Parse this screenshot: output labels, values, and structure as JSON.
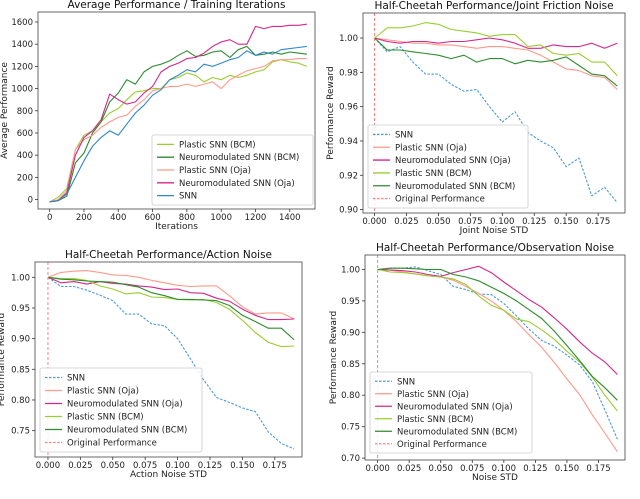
{
  "chart_data": [
    {
      "type": "line",
      "title": "Average Performance / Training Iterations",
      "xlabel": "Iterations",
      "ylabel": "Average Performance",
      "xlim": [
        -68,
        1547
      ],
      "ylim": [
        -85,
        1690
      ],
      "xticks": [
        0,
        200,
        400,
        600,
        800,
        1000,
        1200,
        1400
      ],
      "xtick_labels": [
        "0",
        "200",
        "400",
        "600",
        "800",
        "1000",
        "1200",
        "1400"
      ],
      "yticks": [
        0,
        200,
        400,
        600,
        800,
        1000,
        1200,
        1400,
        1600
      ],
      "ytick_labels": [
        "0",
        "200",
        "400",
        "600",
        "800",
        "1000",
        "1200",
        "1400",
        "1600"
      ],
      "grid": false,
      "legend": "bottom-right",
      "x": [
        0,
        50,
        100,
        150,
        200,
        250,
        300,
        350,
        400,
        450,
        500,
        550,
        600,
        650,
        700,
        750,
        800,
        850,
        900,
        950,
        1000,
        1050,
        1100,
        1150,
        1200,
        1250,
        1300,
        1350,
        1400,
        1450,
        1500
      ],
      "series": [
        {
          "name": "Plastic SNN (BCM)",
          "color": "#9acd32",
          "dash": false,
          "values": [
            -20,
            20,
            100,
            450,
            580,
            620,
            700,
            780,
            820,
            900,
            970,
            980,
            1000,
            1000,
            1080,
            1100,
            1140,
            1120,
            1060,
            1100,
            1080,
            1120,
            1100,
            1120,
            1150,
            1170,
            1240,
            1260,
            1240,
            1230,
            1200
          ]
        },
        {
          "name": "Neuromodulated SNN (BCM)",
          "color": "#2e8b2e",
          "dash": false,
          "values": [
            -20,
            -10,
            30,
            330,
            420,
            600,
            700,
            880,
            960,
            1080,
            1040,
            1150,
            1200,
            1220,
            1250,
            1300,
            1340,
            1290,
            1300,
            1330,
            1340,
            1280,
            1350,
            1380,
            1300,
            1310,
            1330,
            1310,
            1330,
            1320,
            1310
          ]
        },
        {
          "name": "Plastic SNN (Oja)",
          "color": "#ff9a8a",
          "dash": false,
          "values": [
            -20,
            0,
            80,
            450,
            540,
            580,
            650,
            700,
            740,
            760,
            840,
            900,
            980,
            1000,
            1020,
            1020,
            1040,
            1020,
            1040,
            1060,
            1000,
            1080,
            1120,
            1160,
            1180,
            1200,
            1250,
            1260,
            1260,
            1270,
            1270
          ]
        },
        {
          "name": "Neuromodulated SNN (Oja)",
          "color": "#d6278a",
          "dash": false,
          "values": [
            -20,
            -10,
            60,
            400,
            560,
            620,
            720,
            950,
            900,
            860,
            880,
            960,
            1020,
            1150,
            1200,
            1230,
            1270,
            1280,
            1320,
            1380,
            1420,
            1440,
            1400,
            1400,
            1560,
            1540,
            1560,
            1560,
            1570,
            1570,
            1580
          ]
        },
        {
          "name": "SNN",
          "color": "#2f86c8",
          "dash": false,
          "values": [
            -20,
            -10,
            50,
            200,
            350,
            480,
            560,
            620,
            580,
            680,
            780,
            850,
            940,
            990,
            1080,
            1120,
            1170,
            1150,
            1220,
            1200,
            1230,
            1260,
            1280,
            1340,
            1300,
            1330,
            1310,
            1350,
            1360,
            1370,
            1380
          ]
        }
      ]
    },
    {
      "type": "line",
      "title": "Half-Cheetah Performance/Joint Friction Noise",
      "xlabel": "Joint Noise STD",
      "ylabel": "Performance Reward",
      "xlim": [
        -0.009,
        0.196
      ],
      "ylim": [
        0.898,
        1.0146
      ],
      "xticks": [
        0,
        0.025,
        0.05,
        0.075,
        0.1,
        0.125,
        0.15,
        0.175
      ],
      "xtick_labels": [
        "0.000",
        "0.025",
        "0.050",
        "0.075",
        "0.100",
        "0.125",
        "0.150",
        "0.175"
      ],
      "yticks": [
        0.9,
        0.92,
        0.94,
        0.96,
        0.98,
        1.0
      ],
      "ytick_labels": [
        "0.90",
        "0.92",
        "0.94",
        "0.96",
        "0.98",
        "1.00"
      ],
      "grid": false,
      "legend": "lower-left",
      "vline": {
        "x": 0,
        "name": "Original Performance",
        "color": "#ff8080"
      },
      "x": [
        0,
        0.01,
        0.02,
        0.03,
        0.04,
        0.05,
        0.06,
        0.07,
        0.08,
        0.09,
        0.1,
        0.11,
        0.12,
        0.13,
        0.14,
        0.15,
        0.16,
        0.17,
        0.18,
        0.19
      ],
      "series": [
        {
          "name": "SNN",
          "color": "#4a9ad8",
          "dash": true,
          "values": [
            1.0,
            0.992,
            0.995,
            0.986,
            0.979,
            0.979,
            0.973,
            0.969,
            0.97,
            0.96,
            0.951,
            0.957,
            0.945,
            0.94,
            0.936,
            0.925,
            0.93,
            0.908,
            0.913,
            0.904
          ]
        },
        {
          "name": "Plastic SNN (Oja)",
          "color": "#ff9a8a",
          "dash": false,
          "values": [
            1.0,
            0.999,
            0.998,
            0.997,
            0.997,
            0.996,
            0.996,
            0.995,
            0.994,
            0.995,
            0.995,
            0.994,
            0.993,
            0.99,
            0.986,
            0.982,
            0.981,
            0.978,
            0.977,
            0.97
          ]
        },
        {
          "name": "Neuromodulated SNN (Oja)",
          "color": "#d6278a",
          "dash": false,
          "values": [
            1.0,
            0.998,
            0.997,
            0.998,
            0.998,
            0.997,
            0.998,
            0.998,
            0.999,
            1.0,
            0.999,
            0.997,
            0.994,
            0.994,
            0.996,
            0.995,
            0.995,
            0.997,
            0.994,
            0.997
          ]
        },
        {
          "name": "Plastic SNN (BCM)",
          "color": "#9acd32",
          "dash": false,
          "values": [
            1.0,
            1.006,
            1.006,
            1.007,
            1.009,
            1.008,
            1.005,
            1.004,
            1.003,
            1.001,
            1.002,
            1.002,
            0.995,
            0.996,
            0.991,
            0.99,
            0.991,
            0.986,
            0.986,
            0.978
          ]
        },
        {
          "name": "Neuromodulated SNN (BCM)",
          "color": "#2e8b2e",
          "dash": false,
          "values": [
            1.0,
            0.993,
            0.993,
            0.992,
            0.991,
            0.99,
            0.988,
            0.99,
            0.986,
            0.988,
            0.988,
            0.985,
            0.987,
            0.986,
            0.987,
            0.989,
            0.984,
            0.979,
            0.978,
            0.972
          ]
        }
      ]
    },
    {
      "type": "line",
      "title": "Half-Cheetah Performance/Action Noise",
      "xlabel": "Action Noise STD",
      "ylabel": "Performance Reward",
      "xlim": [
        -0.01,
        0.196
      ],
      "ylim": [
        0.707,
        1.025
      ],
      "xticks": [
        0,
        0.025,
        0.05,
        0.075,
        0.1,
        0.125,
        0.15,
        0.175
      ],
      "xtick_labels": [
        "0.000",
        "0.025",
        "0.050",
        "0.075",
        "0.100",
        "0.125",
        "0.150",
        "0.175"
      ],
      "yticks": [
        0.75,
        0.8,
        0.85,
        0.9,
        0.95,
        1.0
      ],
      "ytick_labels": [
        "0.75",
        "0.80",
        "0.85",
        "0.90",
        "0.95",
        "1.00"
      ],
      "grid": false,
      "legend": "lower-left",
      "vline": {
        "x": 0,
        "name": "Original Performance",
        "color": "#ff8080"
      },
      "x": [
        0,
        0.01,
        0.02,
        0.03,
        0.04,
        0.05,
        0.06,
        0.07,
        0.08,
        0.09,
        0.1,
        0.11,
        0.12,
        0.13,
        0.14,
        0.15,
        0.16,
        0.17,
        0.18,
        0.19
      ],
      "series": [
        {
          "name": "SNN",
          "color": "#4a9ad8",
          "dash": true,
          "values": [
            1.0,
            0.985,
            0.985,
            0.979,
            0.971,
            0.962,
            0.94,
            0.94,
            0.924,
            0.921,
            0.9,
            0.867,
            0.833,
            0.804,
            0.796,
            0.787,
            0.781,
            0.748,
            0.729,
            0.72
          ]
        },
        {
          "name": "Plastic SNN (Oja)",
          "color": "#ff9a8a",
          "dash": false,
          "values": [
            1.0,
            1.008,
            1.01,
            1.011,
            1.008,
            1.004,
            1.003,
            1.0,
            0.995,
            0.991,
            0.987,
            0.985,
            0.986,
            0.986,
            0.97,
            0.952,
            0.94,
            0.942,
            0.942,
            0.932
          ]
        },
        {
          "name": "Neuromodulated SNN (Oja)",
          "color": "#d6278a",
          "dash": false,
          "values": [
            1.0,
            0.991,
            0.993,
            0.989,
            0.993,
            0.99,
            0.989,
            0.986,
            0.984,
            0.98,
            0.981,
            0.975,
            0.974,
            0.966,
            0.961,
            0.948,
            0.938,
            0.931,
            0.931,
            0.932
          ]
        },
        {
          "name": "Plastic SNN (BCM)",
          "color": "#9acd32",
          "dash": false,
          "values": [
            1.0,
            0.998,
            0.998,
            0.995,
            0.986,
            0.981,
            0.973,
            0.975,
            0.968,
            0.967,
            0.964,
            0.963,
            0.964,
            0.959,
            0.948,
            0.93,
            0.91,
            0.894,
            0.887,
            0.888
          ]
        },
        {
          "name": "Neuromodulated SNN (BCM)",
          "color": "#2e8b2e",
          "dash": false,
          "values": [
            1.0,
            0.997,
            0.996,
            0.994,
            0.993,
            0.992,
            0.988,
            0.984,
            0.975,
            0.97,
            0.964,
            0.964,
            0.963,
            0.962,
            0.954,
            0.938,
            0.928,
            0.917,
            0.917,
            0.898
          ]
        }
      ]
    },
    {
      "type": "line",
      "title": "Half-Cheetah Performance/Observation Noise",
      "xlabel": "Noise STD",
      "ylabel": "Performance Reward",
      "xlim": [
        -0.01,
        0.196
      ],
      "ylim": [
        0.697,
        1.023
      ],
      "xticks": [
        0,
        0.025,
        0.05,
        0.075,
        0.1,
        0.125,
        0.15,
        0.175
      ],
      "xtick_labels": [
        "0.000",
        "0.025",
        "0.050",
        "0.075",
        "0.100",
        "0.125",
        "0.150",
        "0.175"
      ],
      "yticks": [
        0.7,
        0.75,
        0.8,
        0.85,
        0.9,
        0.95,
        1.0
      ],
      "ytick_labels": [
        "0.70",
        "0.75",
        "0.80",
        "0.85",
        "0.90",
        "0.95",
        "1.00"
      ],
      "grid": false,
      "legend": "lower-left",
      "vline": {
        "x": 0,
        "name": "Original Performance",
        "color": "#ff8080"
      },
      "x": [
        0,
        0.01,
        0.02,
        0.03,
        0.04,
        0.05,
        0.06,
        0.07,
        0.08,
        0.09,
        0.1,
        0.11,
        0.12,
        0.13,
        0.14,
        0.15,
        0.16,
        0.17,
        0.18,
        0.19
      ],
      "series": [
        {
          "name": "SNN",
          "color": "#4a9ad8",
          "dash": true,
          "values": [
            1.0,
            1.002,
            1.002,
            1.004,
            0.998,
            0.992,
            0.973,
            0.968,
            0.961,
            0.96,
            0.946,
            0.926,
            0.905,
            0.887,
            0.878,
            0.864,
            0.848,
            0.822,
            0.777,
            0.73
          ]
        },
        {
          "name": "Plastic SNN (Oja)",
          "color": "#ff9a8a",
          "dash": false,
          "values": [
            1.0,
            0.999,
            0.996,
            0.993,
            0.99,
            0.988,
            0.983,
            0.973,
            0.962,
            0.95,
            0.935,
            0.917,
            0.896,
            0.876,
            0.852,
            0.826,
            0.801,
            0.769,
            0.74,
            0.71
          ]
        },
        {
          "name": "Neuromodulated SNN (Oja)",
          "color": "#d6278a",
          "dash": false,
          "values": [
            1.0,
            0.999,
            0.998,
            0.996,
            0.992,
            0.989,
            0.995,
            1.0,
            1.005,
            0.995,
            0.98,
            0.966,
            0.952,
            0.94,
            0.923,
            0.905,
            0.885,
            0.867,
            0.853,
            0.833
          ]
        },
        {
          "name": "Plastic SNN (BCM)",
          "color": "#9acd32",
          "dash": false,
          "values": [
            1.0,
            0.996,
            0.995,
            0.993,
            0.99,
            0.988,
            0.985,
            0.976,
            0.958,
            0.943,
            0.935,
            0.921,
            0.917,
            0.904,
            0.889,
            0.87,
            0.853,
            0.829,
            0.8,
            0.775
          ]
        },
        {
          "name": "Neuromodulated SNN (BCM)",
          "color": "#2e8b2e",
          "dash": false,
          "values": [
            1.0,
            1.002,
            1.002,
            1.001,
            1.0,
            1.0,
            0.992,
            0.988,
            0.982,
            0.972,
            0.962,
            0.95,
            0.936,
            0.922,
            0.902,
            0.879,
            0.855,
            0.83,
            0.812,
            0.792
          ]
        }
      ]
    }
  ]
}
